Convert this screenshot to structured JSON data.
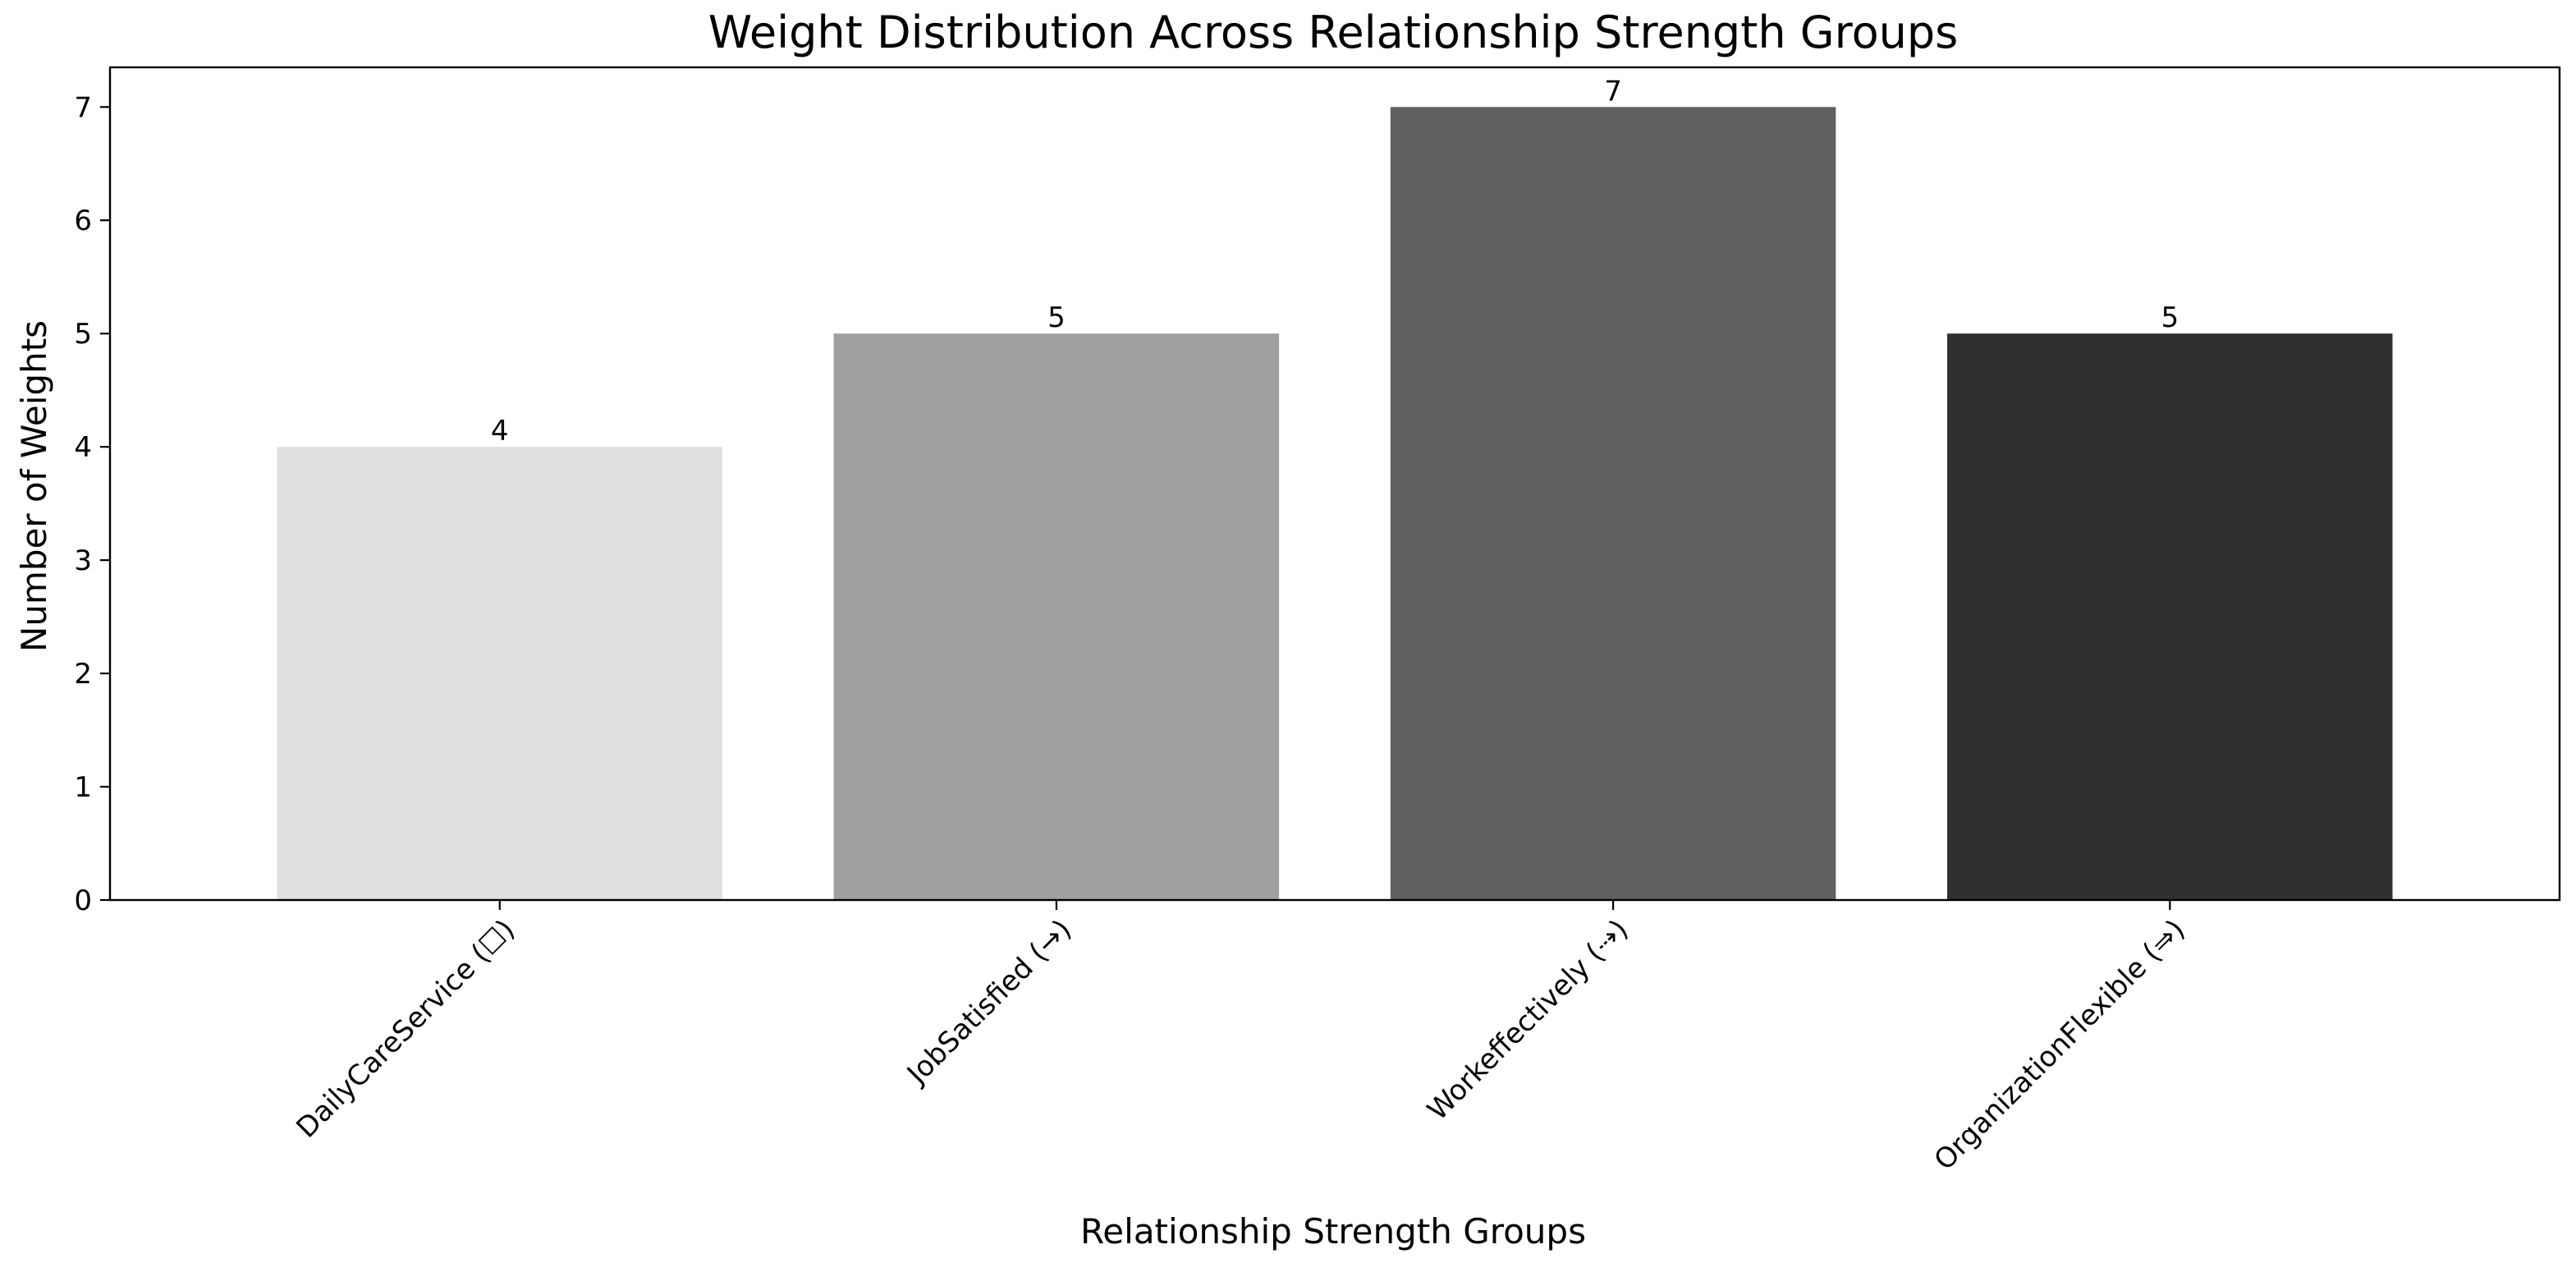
{
  "chart_data": {
    "type": "bar",
    "title": "Weight Distribution Across Relationship Strength Groups",
    "xlabel": "Relationship Strength Groups",
    "ylabel": "Number of Weights",
    "categories": [
      "DailyCareService (☐)",
      "JobSatisfied (→)",
      "Workeffectively (⇢)",
      "OrganizationFlexible (⇒)"
    ],
    "values": [
      4,
      5,
      7,
      5
    ],
    "colors": [
      "#e0e0e0",
      "#a0a0a0",
      "#606060",
      "#303030"
    ],
    "ylim": [
      0,
      7.35
    ],
    "yticks": [
      0,
      1,
      2,
      3,
      4,
      5,
      6,
      7
    ],
    "grid": false,
    "legend": "none"
  }
}
